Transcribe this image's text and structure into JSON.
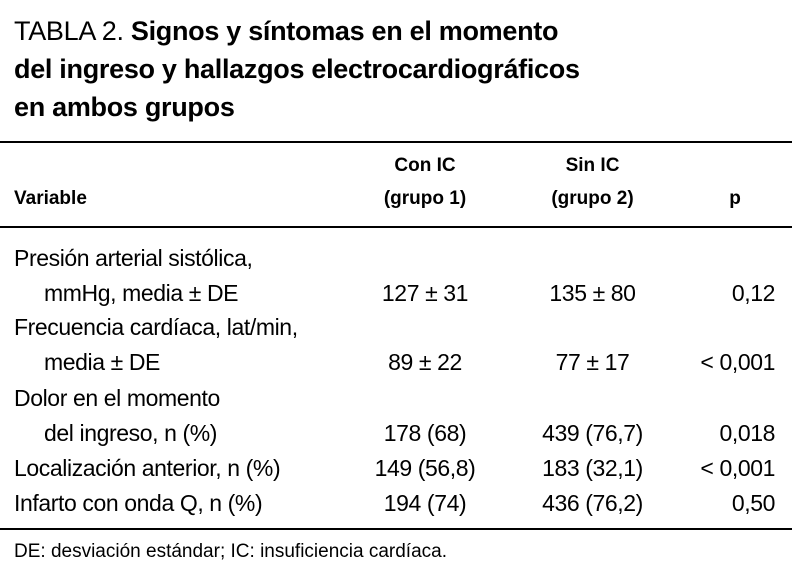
{
  "title": {
    "label": "TABLA 2.",
    "lines": [
      "Signos y síntomas en el momento",
      "del ingreso y hallazgos electrocardiográficos",
      "en ambos grupos"
    ]
  },
  "header": {
    "variable": "Variable",
    "group1": [
      "Con IC",
      "(grupo 1)"
    ],
    "group2": [
      "Sin IC",
      "(grupo 2)"
    ],
    "p": "p"
  },
  "rows": [
    {
      "variable": [
        "Presión arterial sistólica,",
        "mmHg, media ± DE"
      ],
      "group1": "127 ± 31",
      "group2": "135 ± 80",
      "p": "0,12"
    },
    {
      "variable": [
        "Frecuencia cardíaca, lat/min,",
        "media ± DE"
      ],
      "group1": "89 ± 22",
      "group2": "77 ± 17",
      "p": "< 0,001"
    },
    {
      "variable": [
        "Dolor en el momento",
        "del ingreso, n (%)"
      ],
      "group1": "178 (68)",
      "group2": "439 (76,7)",
      "p": "0,018"
    },
    {
      "variable": [
        "Localización anterior, n (%)"
      ],
      "group1": "149 (56,8)",
      "group2": "183 (32,1)",
      "p": "< 0,001"
    },
    {
      "variable": [
        "Infarto con onda Q, n (%)"
      ],
      "group1": "194 (74)",
      "group2": "436 (76,2)",
      "p": "0,50"
    }
  ],
  "footnote": "DE: desviación estándar; IC: insuficiencia cardíaca."
}
